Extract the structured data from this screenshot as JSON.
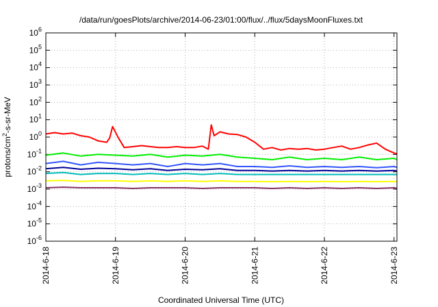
{
  "chart_data": {
    "type": "line",
    "title": "/data/run/goesPlots/archive/2014-06-23/01:00/flux/../flux/5daysMoonFluxes.txt",
    "xlabel": "Coordinated Universal Time (UTC)",
    "ylabel_parts": {
      "pre": "protons/cm",
      "sup": "2",
      "post": "-s-sr-MeV"
    },
    "y_scale": "log",
    "ylim": [
      1e-06,
      1000000.0
    ],
    "y_ticks": [
      {
        "value": 1e-06,
        "base": "10",
        "exp": "-6"
      },
      {
        "value": 1e-05,
        "base": "10",
        "exp": "-5"
      },
      {
        "value": 0.0001,
        "base": "10",
        "exp": "-4"
      },
      {
        "value": 0.001,
        "base": "10",
        "exp": "-3"
      },
      {
        "value": 0.01,
        "base": "10",
        "exp": "-2"
      },
      {
        "value": 0.1,
        "base": "10",
        "exp": "-1"
      },
      {
        "value": 1,
        "base": "10",
        "exp": "0"
      },
      {
        "value": 10,
        "base": "10",
        "exp": "1"
      },
      {
        "value": 100,
        "base": "10",
        "exp": "2"
      },
      {
        "value": 1000,
        "base": "10",
        "exp": "3"
      },
      {
        "value": 10000,
        "base": "10",
        "exp": "4"
      },
      {
        "value": 100000,
        "base": "10",
        "exp": "5"
      },
      {
        "value": 1000000,
        "base": "10",
        "exp": "6"
      }
    ],
    "xlim": [
      "2014-06-18 00:00",
      "2014-06-23 01:00"
    ],
    "x_ticks": [
      "2014-6-18",
      "2014-6-19",
      "2014-6-20",
      "2014-6-21",
      "2014-6-22",
      "2014-6-23"
    ],
    "grid": true,
    "legend": "none",
    "series": [
      {
        "color": "#ff0000",
        "x": [
          "2014-06-18 00:00",
          "2014-06-18 03:00",
          "2014-06-18 06:00",
          "2014-06-18 09:00",
          "2014-06-18 12:00",
          "2014-06-18 15:00",
          "2014-06-18 18:00",
          "2014-06-18 21:00",
          "2014-06-18 22:00",
          "2014-06-18 23:00",
          "2014-06-19 01:00",
          "2014-06-19 03:00",
          "2014-06-19 06:00",
          "2014-06-19 09:00",
          "2014-06-19 12:00",
          "2014-06-19 15:00",
          "2014-06-19 18:00",
          "2014-06-19 21:00",
          "2014-06-20 00:00",
          "2014-06-20 03:00",
          "2014-06-20 06:00",
          "2014-06-20 08:00",
          "2014-06-20 09:00",
          "2014-06-20 10:00",
          "2014-06-20 12:00",
          "2014-06-20 15:00",
          "2014-06-20 18:00",
          "2014-06-20 21:00",
          "2014-06-21 00:00",
          "2014-06-21 03:00",
          "2014-06-21 06:00",
          "2014-06-21 09:00",
          "2014-06-21 12:00",
          "2014-06-21 15:00",
          "2014-06-21 18:00",
          "2014-06-21 21:00",
          "2014-06-22 00:00",
          "2014-06-22 03:00",
          "2014-06-22 06:00",
          "2014-06-22 09:00",
          "2014-06-22 12:00",
          "2014-06-22 15:00",
          "2014-06-22 18:00",
          "2014-06-22 21:00",
          "2014-06-23 00:00",
          "2014-06-23 01:00"
        ],
        "y": [
          1.5,
          1.8,
          1.5,
          1.7,
          1.2,
          1.0,
          0.6,
          0.5,
          0.9,
          4.0,
          0.9,
          0.25,
          0.28,
          0.32,
          0.28,
          0.25,
          0.25,
          0.28,
          0.25,
          0.25,
          0.3,
          0.2,
          5.0,
          1.2,
          2.0,
          1.5,
          1.4,
          1.0,
          0.5,
          0.2,
          0.25,
          0.18,
          0.22,
          0.2,
          0.22,
          0.18,
          0.2,
          0.25,
          0.3,
          0.2,
          0.25,
          0.35,
          0.45,
          0.2,
          0.12,
          0.11
        ]
      },
      {
        "color": "#00ee00",
        "x": [
          "2014-06-18 00:00",
          "2014-06-18 06:00",
          "2014-06-18 12:00",
          "2014-06-18 18:00",
          "2014-06-19 00:00",
          "2014-06-19 06:00",
          "2014-06-19 12:00",
          "2014-06-19 18:00",
          "2014-06-20 00:00",
          "2014-06-20 06:00",
          "2014-06-20 12:00",
          "2014-06-20 18:00",
          "2014-06-21 00:00",
          "2014-06-21 06:00",
          "2014-06-21 12:00",
          "2014-06-21 18:00",
          "2014-06-22 00:00",
          "2014-06-22 06:00",
          "2014-06-22 12:00",
          "2014-06-22 18:00",
          "2014-06-23 00:00",
          "2014-06-23 01:00"
        ],
        "y": [
          0.09,
          0.12,
          0.08,
          0.1,
          0.09,
          0.08,
          0.1,
          0.07,
          0.09,
          0.08,
          0.1,
          0.07,
          0.06,
          0.05,
          0.07,
          0.05,
          0.06,
          0.05,
          0.07,
          0.05,
          0.06,
          0.05
        ]
      },
      {
        "color": "#3355ff",
        "x": [
          "2014-06-18 00:00",
          "2014-06-18 06:00",
          "2014-06-18 12:00",
          "2014-06-18 18:00",
          "2014-06-19 00:00",
          "2014-06-19 06:00",
          "2014-06-19 12:00",
          "2014-06-19 18:00",
          "2014-06-20 00:00",
          "2014-06-20 06:00",
          "2014-06-20 12:00",
          "2014-06-20 18:00",
          "2014-06-21 00:00",
          "2014-06-21 06:00",
          "2014-06-21 12:00",
          "2014-06-21 18:00",
          "2014-06-22 00:00",
          "2014-06-22 06:00",
          "2014-06-22 12:00",
          "2014-06-22 18:00",
          "2014-06-23 00:00",
          "2014-06-23 01:00"
        ],
        "y": [
          0.03,
          0.04,
          0.025,
          0.035,
          0.03,
          0.025,
          0.03,
          0.02,
          0.03,
          0.025,
          0.03,
          0.02,
          0.02,
          0.018,
          0.022,
          0.018,
          0.02,
          0.018,
          0.02,
          0.017,
          0.02,
          0.018
        ]
      },
      {
        "color": "#000099",
        "x": [
          "2014-06-18 00:00",
          "2014-06-18 06:00",
          "2014-06-18 12:00",
          "2014-06-18 18:00",
          "2014-06-19 00:00",
          "2014-06-19 06:00",
          "2014-06-19 12:00",
          "2014-06-19 18:00",
          "2014-06-20 00:00",
          "2014-06-20 06:00",
          "2014-06-20 12:00",
          "2014-06-20 18:00",
          "2014-06-21 00:00",
          "2014-06-21 06:00",
          "2014-06-21 12:00",
          "2014-06-21 18:00",
          "2014-06-22 00:00",
          "2014-06-22 06:00",
          "2014-06-22 12:00",
          "2014-06-22 18:00",
          "2014-06-23 00:00",
          "2014-06-23 01:00"
        ],
        "y": [
          0.015,
          0.018,
          0.014,
          0.016,
          0.015,
          0.013,
          0.015,
          0.012,
          0.014,
          0.013,
          0.015,
          0.012,
          0.012,
          0.011,
          0.012,
          0.011,
          0.012,
          0.011,
          0.012,
          0.011,
          0.012,
          0.011
        ]
      },
      {
        "color": "#00bbbb",
        "x": [
          "2014-06-18 00:00",
          "2014-06-18 06:00",
          "2014-06-18 12:00",
          "2014-06-18 18:00",
          "2014-06-19 00:00",
          "2014-06-19 06:00",
          "2014-06-19 12:00",
          "2014-06-19 18:00",
          "2014-06-20 00:00",
          "2014-06-20 06:00",
          "2014-06-20 12:00",
          "2014-06-20 18:00",
          "2014-06-21 00:00",
          "2014-06-21 06:00",
          "2014-06-21 12:00",
          "2014-06-21 18:00",
          "2014-06-22 00:00",
          "2014-06-22 06:00",
          "2014-06-22 12:00",
          "2014-06-22 18:00",
          "2014-06-23 00:00",
          "2014-06-23 01:00"
        ],
        "y": [
          0.008,
          0.009,
          0.007,
          0.008,
          0.008,
          0.007,
          0.008,
          0.007,
          0.008,
          0.007,
          0.008,
          0.007,
          0.007,
          0.007,
          0.007,
          0.007,
          0.007,
          0.007,
          0.007,
          0.007,
          0.007,
          0.007
        ]
      },
      {
        "color": "#ffff00",
        "x": [
          "2014-06-18 00:00",
          "2014-06-18 06:00",
          "2014-06-18 12:00",
          "2014-06-18 18:00",
          "2014-06-19 00:00",
          "2014-06-19 06:00",
          "2014-06-19 12:00",
          "2014-06-19 18:00",
          "2014-06-20 00:00",
          "2014-06-20 06:00",
          "2014-06-20 12:00",
          "2014-06-20 18:00",
          "2014-06-21 00:00",
          "2014-06-21 06:00",
          "2014-06-21 12:00",
          "2014-06-21 18:00",
          "2014-06-22 00:00",
          "2014-06-22 06:00",
          "2014-06-22 12:00",
          "2014-06-22 18:00",
          "2014-06-23 00:00",
          "2014-06-23 01:00"
        ],
        "y": [
          0.003,
          0.0032,
          0.0028,
          0.003,
          0.003,
          0.0028,
          0.003,
          0.0028,
          0.003,
          0.0028,
          0.003,
          0.0028,
          0.0028,
          0.0027,
          0.0028,
          0.0027,
          0.0028,
          0.0027,
          0.0028,
          0.0027,
          0.0028,
          0.0027
        ]
      },
      {
        "color": "#883366",
        "x": [
          "2014-06-18 00:00",
          "2014-06-18 06:00",
          "2014-06-18 12:00",
          "2014-06-18 18:00",
          "2014-06-19 00:00",
          "2014-06-19 06:00",
          "2014-06-19 12:00",
          "2014-06-19 18:00",
          "2014-06-20 00:00",
          "2014-06-20 06:00",
          "2014-06-20 12:00",
          "2014-06-20 18:00",
          "2014-06-21 00:00",
          "2014-06-21 06:00",
          "2014-06-21 12:00",
          "2014-06-21 18:00",
          "2014-06-22 00:00",
          "2014-06-22 06:00",
          "2014-06-22 12:00",
          "2014-06-22 18:00",
          "2014-06-23 00:00",
          "2014-06-23 01:00"
        ],
        "y": [
          0.0012,
          0.0013,
          0.0012,
          0.0012,
          0.0012,
          0.0011,
          0.0012,
          0.0012,
          0.0012,
          0.0011,
          0.0012,
          0.0012,
          0.0012,
          0.0011,
          0.0012,
          0.0011,
          0.0012,
          0.0011,
          0.0012,
          0.0011,
          0.0012,
          0.0011
        ]
      }
    ]
  }
}
